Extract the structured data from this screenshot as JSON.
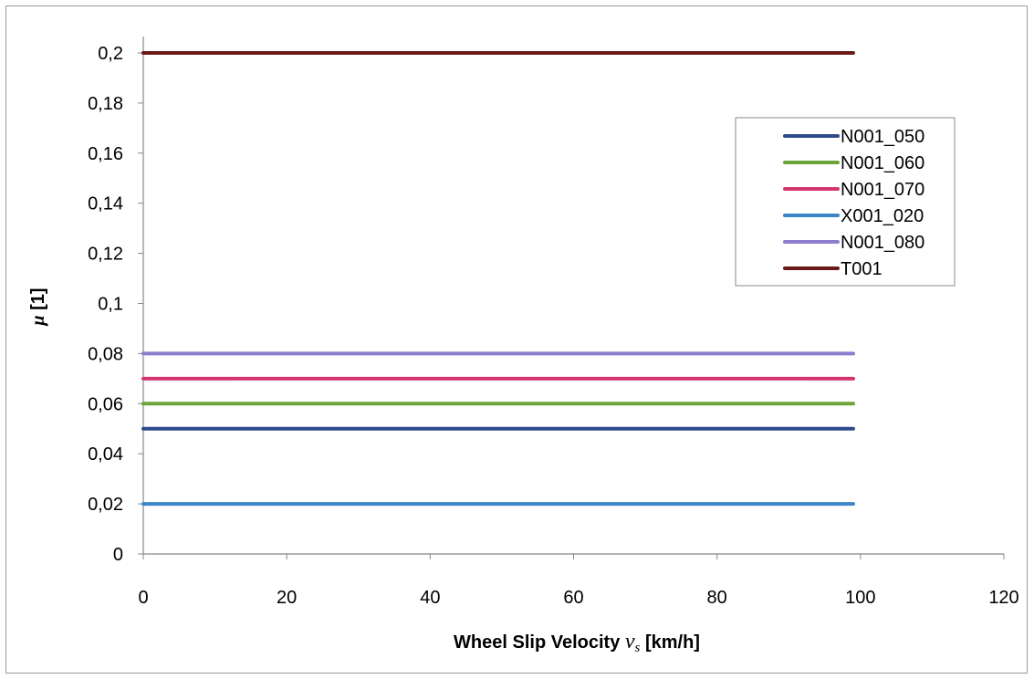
{
  "chart_data": {
    "type": "line",
    "title": "",
    "xlabel_main": "Wheel Slip Velocity ",
    "xlabel_symbol": "v",
    "xlabel_sub": "s",
    "xlabel_unit": " [km/h]",
    "ylabel_symbol": "μ",
    "ylabel_unit": " [1]",
    "xlim": [
      0,
      120
    ],
    "ylim": [
      0,
      0.2
    ],
    "x_ticks": [
      0,
      20,
      40,
      60,
      80,
      100,
      120
    ],
    "x_tick_labels": [
      "0",
      "20",
      "40",
      "60",
      "80",
      "100",
      "120"
    ],
    "y_ticks": [
      0,
      0.02,
      0.04,
      0.06,
      0.08,
      0.1,
      0.12,
      0.14,
      0.16,
      0.18,
      0.2
    ],
    "y_tick_labels": [
      "0",
      "0,02",
      "0,04",
      "0,06",
      "0,08",
      "0,1",
      "0,12",
      "0,14",
      "0,16",
      "0,18",
      "0,2"
    ],
    "grid": false,
    "legend_position": "top-right",
    "x": [
      0,
      99
    ],
    "series": [
      {
        "name": "N001_050",
        "color": "#2E4A8F",
        "values": [
          0.05,
          0.05
        ]
      },
      {
        "name": "N001_060",
        "color": "#6BA539",
        "values": [
          0.06,
          0.06
        ]
      },
      {
        "name": "N001_070",
        "color": "#D4356E",
        "values": [
          0.07,
          0.07
        ]
      },
      {
        "name": "X001_020",
        "color": "#3A86C8",
        "values": [
          0.02,
          0.02
        ]
      },
      {
        "name": "N001_080",
        "color": "#8E7CCF",
        "values": [
          0.08,
          0.08
        ]
      },
      {
        "name": "T001",
        "color": "#6B1A1A",
        "values": [
          0.2,
          0.2
        ]
      }
    ]
  }
}
